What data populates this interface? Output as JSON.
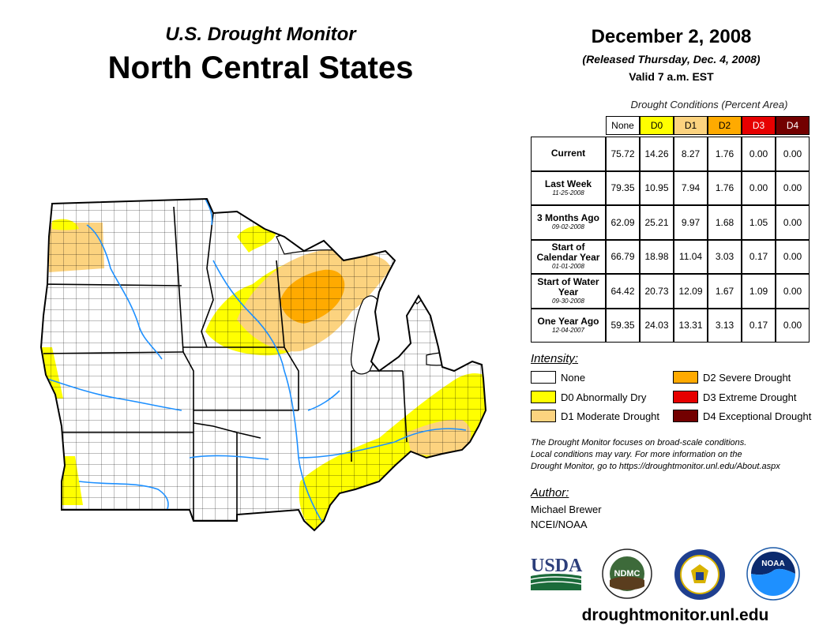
{
  "header": {
    "subtitle": "U.S. Drought Monitor",
    "title": "North Central States",
    "date": "December 2, 2008",
    "released": "(Released Thursday, Dec. 4, 2008)",
    "valid": "Valid 7 a.m. EST"
  },
  "conditions": {
    "title": "Drought Conditions (Percent Area)",
    "columns": [
      "None",
      "D0",
      "D1",
      "D2",
      "D3",
      "D4"
    ],
    "column_colors": [
      "#ffffff",
      "#ffff00",
      "#fcd37f",
      "#ffaa00",
      "#e60000",
      "#730000"
    ],
    "rows": [
      {
        "label": "Current",
        "date": "",
        "values": [
          "75.72",
          "14.26",
          "8.27",
          "1.76",
          "0.00",
          "0.00"
        ]
      },
      {
        "label": "Last Week",
        "date": "11-25-2008",
        "values": [
          "79.35",
          "10.95",
          "7.94",
          "1.76",
          "0.00",
          "0.00"
        ]
      },
      {
        "label": "3 Months Ago",
        "date": "09-02-2008",
        "values": [
          "62.09",
          "25.21",
          "9.97",
          "1.68",
          "1.05",
          "0.00"
        ]
      },
      {
        "label": "Start of Calendar Year",
        "date": "01-01-2008",
        "values": [
          "66.79",
          "18.98",
          "11.04",
          "3.03",
          "0.17",
          "0.00"
        ]
      },
      {
        "label": "Start of Water Year",
        "date": "09-30-2008",
        "values": [
          "64.42",
          "20.73",
          "12.09",
          "1.67",
          "1.09",
          "0.00"
        ]
      },
      {
        "label": "One Year Ago",
        "date": "12-04-2007",
        "values": [
          "59.35",
          "24.03",
          "13.31",
          "3.13",
          "0.17",
          "0.00"
        ]
      }
    ]
  },
  "intensity": {
    "title": "Intensity:",
    "items": [
      {
        "label": "None",
        "color": "#ffffff"
      },
      {
        "label": "D0 Abnormally Dry",
        "color": "#ffff00"
      },
      {
        "label": "D1 Moderate Drought",
        "color": "#fcd37f"
      },
      {
        "label": "D2 Severe Drought",
        "color": "#ffaa00"
      },
      {
        "label": "D3 Extreme Drought",
        "color": "#e60000"
      },
      {
        "label": "D4 Exceptional Drought",
        "color": "#730000"
      }
    ]
  },
  "note": {
    "line1": "The Drought Monitor focuses on broad-scale conditions.",
    "line2": "Local conditions may vary. For more information on the",
    "line3": "Drought Monitor, go to https://droughtmonitor.unl.edu/About.aspx"
  },
  "author": {
    "title": "Author:",
    "name": "Michael Brewer",
    "org": "NCEI/NOAA"
  },
  "logos": {
    "usda": "USDA",
    "ndmc": "NDMC",
    "noaa": "NOAA"
  },
  "footer": {
    "url": "droughtmonitor.unl.edu"
  },
  "map_colors": {
    "water": "#1e90ff",
    "lake": "#ffffff",
    "land": "#ffffff",
    "border": "#000000"
  }
}
